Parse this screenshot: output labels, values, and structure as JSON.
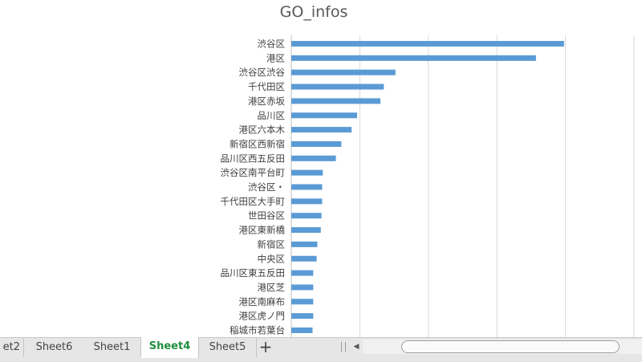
{
  "chart_data": {
    "type": "bar",
    "orientation": "horizontal",
    "title": "GO_infos",
    "xlabel": "",
    "ylabel": "",
    "grid": true,
    "legend": "none",
    "bar_color": "#5b9bd5",
    "categories": [
      "渋谷区",
      "港区",
      "渋谷区渋谷",
      "千代田区",
      "港区赤坂",
      "品川区",
      "港区六本木",
      "新宿区西新宿",
      "品川区西五反田",
      "渋谷区南平台町",
      "渋谷区・",
      "千代田区大手町",
      "世田谷区",
      "港区東新橋",
      "新宿区",
      "中央区",
      "品川区東五反田",
      "港区芝",
      "港区南麻布",
      "港区虎ノ門",
      "稲城市若葉台"
    ],
    "values": [
      398,
      357,
      152,
      135,
      130,
      96,
      88,
      73,
      65,
      46,
      45,
      45,
      44,
      43,
      38,
      37,
      32,
      32,
      32,
      32,
      31
    ],
    "xlim": [
      0,
      500
    ],
    "gridlines": [
      0,
      100,
      200,
      300,
      400,
      500
    ]
  },
  "sheet_tabs": {
    "tabs": [
      {
        "label": "et2",
        "active": false
      },
      {
        "label": "Sheet6",
        "active": false
      },
      {
        "label": "Sheet1",
        "active": false
      },
      {
        "label": "Sheet4",
        "active": true
      },
      {
        "label": "Sheet5",
        "active": false
      }
    ],
    "add_label": "+"
  },
  "colors": {
    "accent": "#1e8e3e",
    "bar": "#5b9bd5",
    "grid": "#d9d9d9"
  }
}
